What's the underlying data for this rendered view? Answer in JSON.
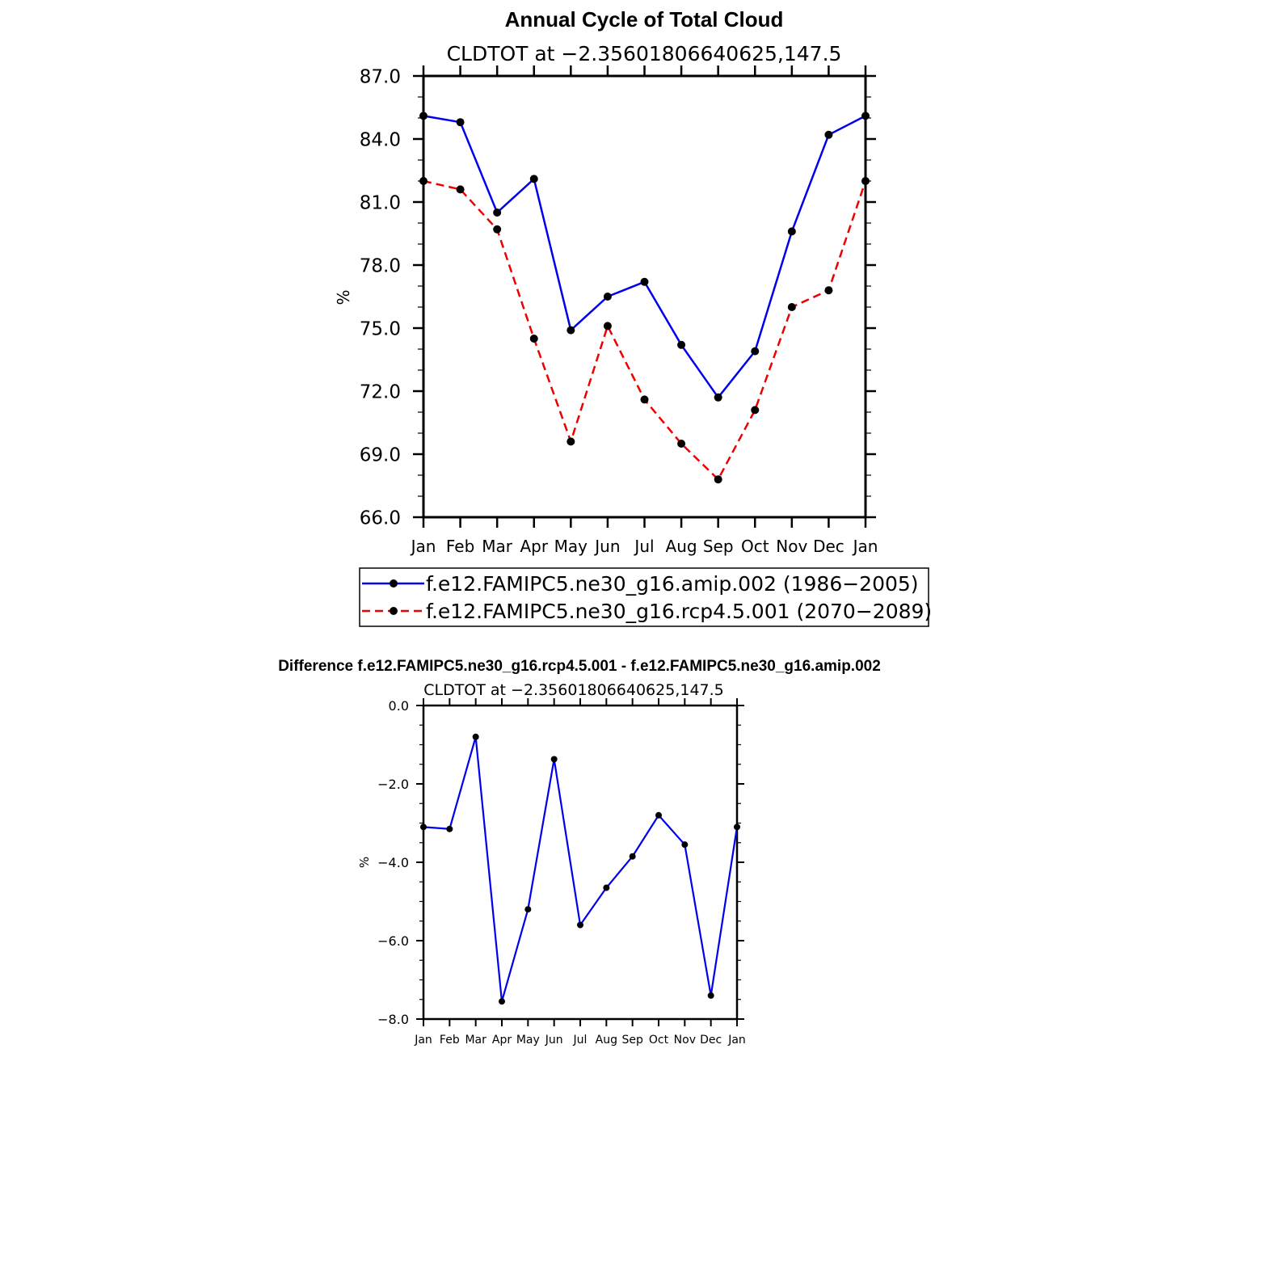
{
  "colors": {
    "amip": "#0000ee",
    "rcp": "#ee0000",
    "axis": "#000000",
    "marker": "#000000"
  },
  "chart_data": [
    {
      "type": "line",
      "title": "Annual Cycle of Total Cloud",
      "subtitle": "CLDTOT at −2.35601806640625,147.5",
      "xlabel": "",
      "ylabel": "%",
      "categories": [
        "Jan",
        "Feb",
        "Mar",
        "Apr",
        "May",
        "Jun",
        "Jul",
        "Aug",
        "Sep",
        "Oct",
        "Nov",
        "Dec",
        "Jan"
      ],
      "ylim": [
        66.0,
        87.0
      ],
      "yticks": [
        "87.0",
        "84.0",
        "81.0",
        "78.0",
        "75.0",
        "72.0",
        "69.0",
        "66.0"
      ],
      "legend_position": "bottom",
      "series": [
        {
          "name": "f.e12.FAMIPC5.ne30_g16.amip.002 (1986−2005)",
          "style": "solid",
          "values": [
            85.1,
            84.8,
            80.5,
            82.1,
            74.9,
            76.5,
            77.2,
            74.2,
            71.7,
            73.9,
            79.6,
            84.2,
            85.1
          ]
        },
        {
          "name": "f.e12.FAMIPC5.ne30_g16.rcp4.5.001 (2070−2089)",
          "style": "dashed",
          "values": [
            82.0,
            81.6,
            79.7,
            74.5,
            69.6,
            75.1,
            71.6,
            69.5,
            67.8,
            71.1,
            76.0,
            76.8,
            82.0
          ]
        }
      ]
    },
    {
      "type": "line",
      "title": "Difference f.e12.FAMIPC5.ne30_g16.rcp4.5.001 - f.e12.FAMIPC5.ne30_g16.amip.002",
      "subtitle": "CLDTOT at −2.35601806640625,147.5",
      "xlabel": "",
      "ylabel": "%",
      "categories": [
        "Jan",
        "Feb",
        "Mar",
        "Apr",
        "May",
        "Jun",
        "Jul",
        "Aug",
        "Sep",
        "Oct",
        "Nov",
        "Dec",
        "Jan"
      ],
      "ylim": [
        -8.0,
        0.0
      ],
      "yticks": [
        "0.0",
        "−2.0",
        "−4.0",
        "−6.0",
        "−8.0"
      ],
      "series": [
        {
          "style": "solid",
          "values": [
            -3.1,
            -3.15,
            -0.8,
            -7.55,
            -5.2,
            -1.37,
            -5.6,
            -4.65,
            -3.85,
            -2.8,
            -3.55,
            -7.4,
            -3.1
          ]
        }
      ]
    }
  ]
}
